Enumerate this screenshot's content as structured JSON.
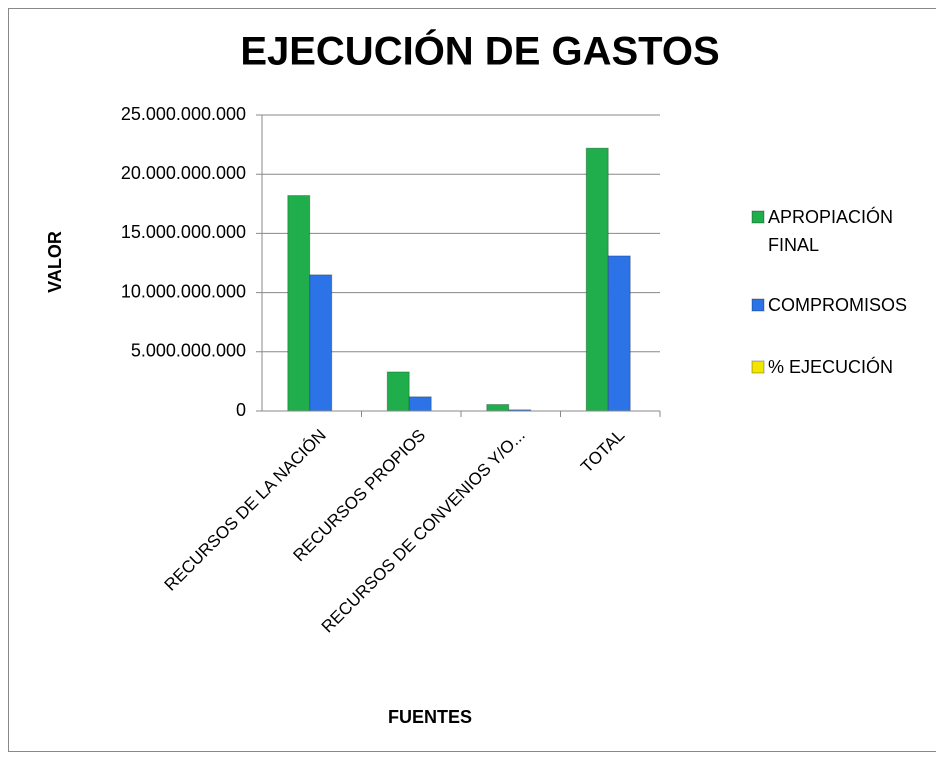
{
  "chart_data": {
    "type": "bar",
    "title": "EJECUCIÓN DE GASTOS",
    "x_label": "FUENTES",
    "y_label": "VALOR",
    "categories": [
      "RECURSOS DE LA NACIÓN",
      "RECURSOS PROPIOS",
      "RECURSOS DE CONVENIOS Y/O...",
      "TOTAL"
    ],
    "series": [
      {
        "name": "APROPIACIÓN FINAL",
        "color": "#1fae4b",
        "values": [
          18200000000,
          3300000000,
          550000000,
          22200000000
        ]
      },
      {
        "name": "COMPROMISOS",
        "color": "#2b73e6",
        "values": [
          11500000000,
          1200000000,
          100000000,
          13100000000
        ]
      },
      {
        "name": "% EJECUCIÓN",
        "color": "#f2e600",
        "values": [
          0.63,
          0.36,
          0.18,
          0.59
        ]
      }
    ],
    "ylim": [
      0,
      25000000000
    ],
    "yticks": [
      0,
      {
        "value": 5000000000,
        "label": "5.000.000.000"
      },
      {
        "value": 10000000000,
        "label": "10.000.000.000"
      },
      {
        "value": 15000000000,
        "label": "15.000.000.000"
      },
      {
        "value": 20000000000,
        "label": "20.000.000.000"
      },
      {
        "value": 25000000000,
        "label": "25.000.000.000"
      }
    ],
    "grid": true,
    "legend": "right"
  }
}
